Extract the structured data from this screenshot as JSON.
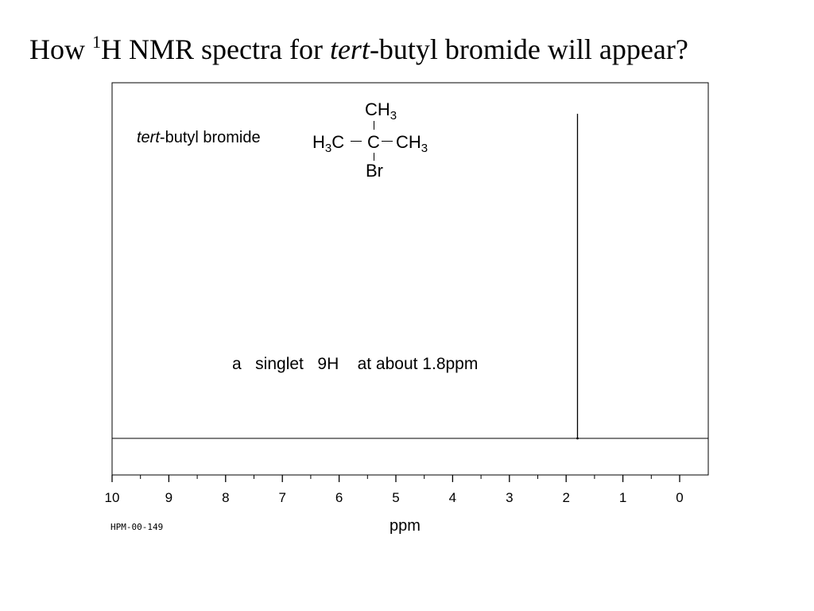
{
  "slide": {
    "title_prefix": "How ",
    "title_sup": "1",
    "title_mid": "H NMR spectra for ",
    "title_italic": "tert",
    "title_suffix": "-butyl bromide will appear?"
  },
  "compound": {
    "name_italic": "tert",
    "name_rest": "-butyl bromide",
    "structure": {
      "top_group": "CH",
      "top_sub": "3",
      "left_group_h": "H",
      "left_sub": "3",
      "left_group_c": "C",
      "center_atom": "C",
      "right_group": "CH",
      "right_sub": "3",
      "bottom_group": "Br"
    }
  },
  "annotation": {
    "text": "a   singlet   9H    at about 1.8ppm"
  },
  "spectrum_code": "HPM-00-149",
  "chart_data": {
    "type": "line",
    "title": "",
    "xlabel": "ppm",
    "ylabel": "",
    "xlim": [
      10,
      0
    ],
    "x_reversed": true,
    "grid": false,
    "x_ticks": [
      10,
      9,
      8,
      7,
      6,
      5,
      4,
      3,
      2,
      1,
      0
    ],
    "x_tick_labels": [
      "10",
      "9",
      "8",
      "7",
      "6",
      "5",
      "4",
      "3",
      "2",
      "1",
      "0"
    ],
    "minor_tick_step": 0.5,
    "series": [
      {
        "peaks": [
          {
            "ppm": 1.8,
            "relative_height": 1.0,
            "multiplicity": "singlet",
            "protons": 9
          }
        ]
      }
    ]
  }
}
